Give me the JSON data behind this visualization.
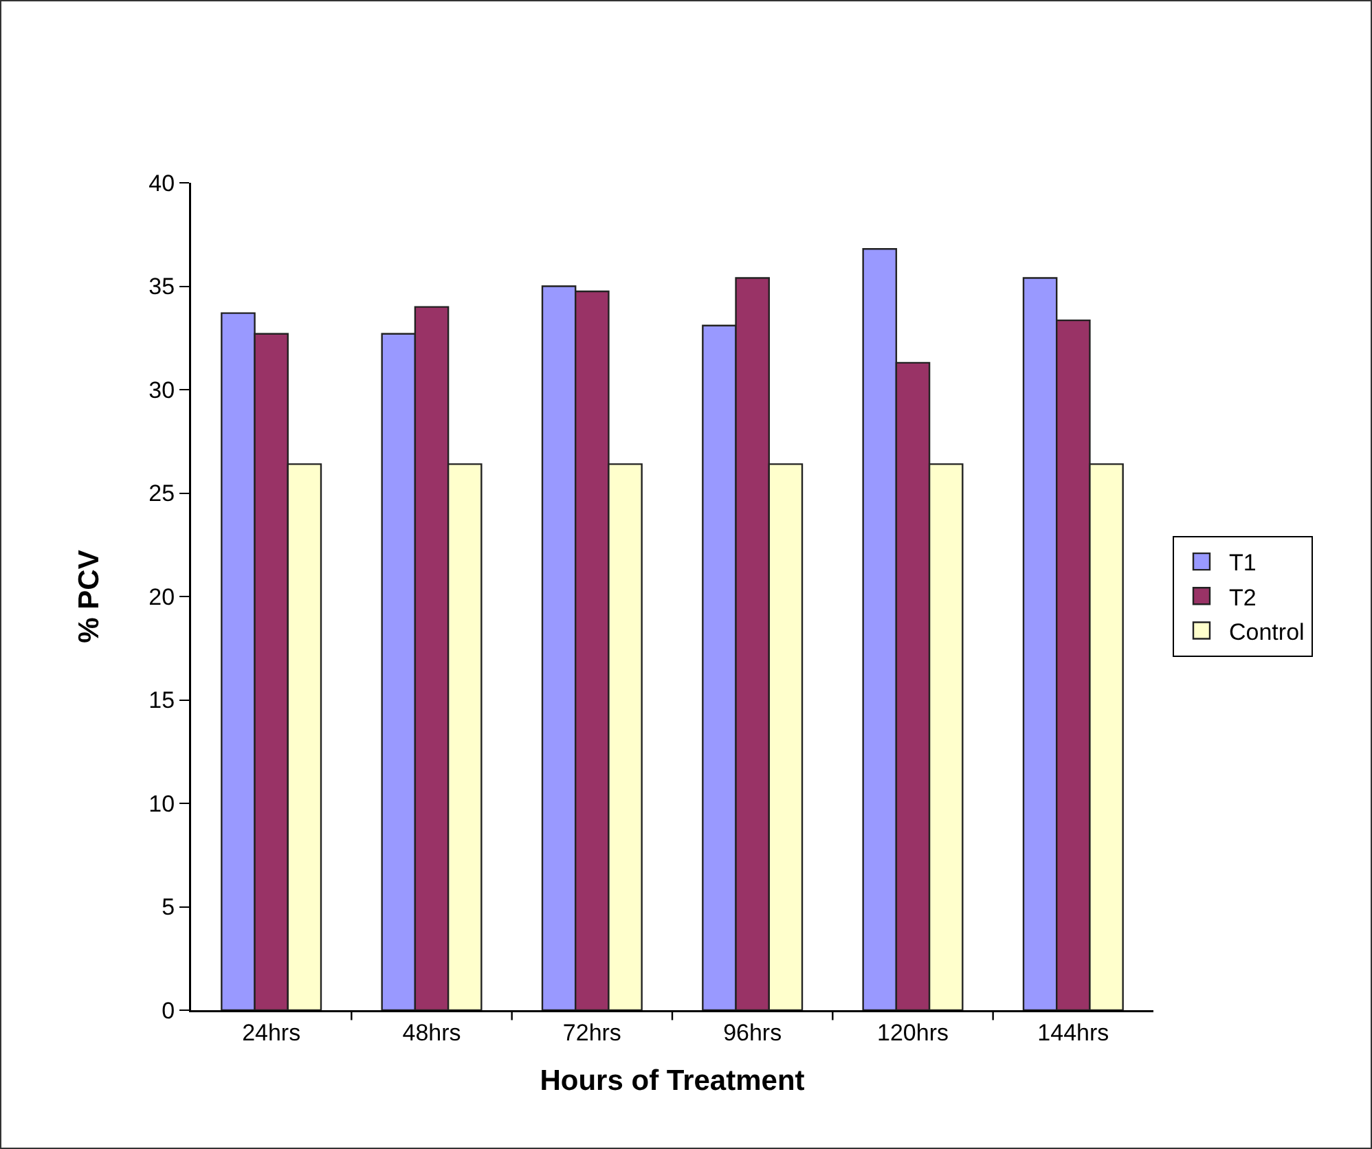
{
  "chart_data": {
    "type": "bar",
    "xlabel": "Hours of Treatment",
    "ylabel": "% PCV",
    "categories": [
      "24hrs",
      "48hrs",
      "72hrs",
      "96hrs",
      "120hrs",
      "144hrs"
    ],
    "series": [
      {
        "name": "T1",
        "color": "#9999ff",
        "values": [
          33.7,
          32.7,
          35.0,
          33.1,
          36.8,
          35.4
        ]
      },
      {
        "name": "T2",
        "color": "#993366",
        "values": [
          32.7,
          34.0,
          34.75,
          35.4,
          31.3,
          33.35
        ]
      },
      {
        "name": "Control",
        "color": "#ffffcc",
        "values": [
          26.4,
          26.4,
          26.4,
          26.4,
          26.4,
          26.4
        ]
      }
    ],
    "ylim": [
      0,
      40
    ],
    "yticks": [
      0,
      5,
      10,
      15,
      20,
      25,
      30,
      35,
      40
    ],
    "grid": false,
    "legend": "right"
  }
}
